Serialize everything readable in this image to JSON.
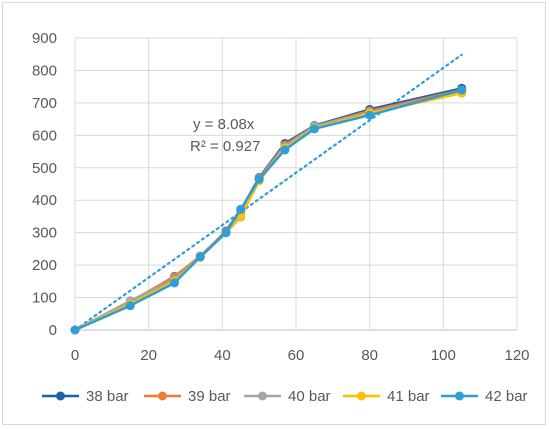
{
  "chart_data": {
    "type": "line",
    "title": "",
    "xlabel": "",
    "ylabel": "",
    "xlim": [
      0,
      120
    ],
    "ylim": [
      0,
      900
    ],
    "x_ticks": [
      "0",
      "20",
      "40",
      "60",
      "80",
      "100",
      "120"
    ],
    "y_ticks": [
      "0",
      "100",
      "200",
      "300",
      "400",
      "500",
      "600",
      "700",
      "800",
      "900"
    ],
    "grid": "horizontal and vertical",
    "legend_position": "bottom",
    "series": [
      {
        "name": "38 bar",
        "color": "#1f5fa8",
        "points": [
          [
            0,
            0
          ],
          [
            15,
            85
          ],
          [
            27,
            165
          ],
          [
            34,
            225
          ],
          [
            41,
            305
          ],
          [
            45,
            370
          ],
          [
            50,
            470
          ],
          [
            57,
            575
          ],
          [
            65,
            630
          ],
          [
            80,
            680
          ],
          [
            105,
            745
          ]
        ]
      },
      {
        "name": "39 bar",
        "color": "#ed7d31",
        "points": [
          [
            0,
            0
          ],
          [
            15,
            88
          ],
          [
            27,
            163
          ],
          [
            34,
            228
          ],
          [
            41,
            303
          ],
          [
            45,
            360
          ],
          [
            50,
            468
          ],
          [
            57,
            570
          ],
          [
            65,
            628
          ],
          [
            80,
            675
          ],
          [
            105,
            740
          ]
        ]
      },
      {
        "name": "40 bar",
        "color": "#a5a5a5",
        "points": [
          [
            0,
            0
          ],
          [
            15,
            90
          ],
          [
            27,
            155
          ],
          [
            34,
            226
          ],
          [
            41,
            300
          ],
          [
            45,
            348
          ],
          [
            50,
            465
          ],
          [
            57,
            565
          ],
          [
            65,
            628
          ],
          [
            80,
            670
          ],
          [
            105,
            735
          ]
        ]
      },
      {
        "name": "41 bar",
        "color": "#ffc000",
        "points": [
          [
            0,
            0
          ],
          [
            15,
            80
          ],
          [
            27,
            150
          ],
          [
            34,
            224
          ],
          [
            41,
            300
          ],
          [
            45,
            350
          ],
          [
            50,
            460
          ],
          [
            57,
            560
          ],
          [
            65,
            622
          ],
          [
            80,
            668
          ],
          [
            105,
            730
          ]
        ]
      },
      {
        "name": "42 bar",
        "color": "#2e9fd6",
        "points": [
          [
            0,
            0
          ],
          [
            15,
            75
          ],
          [
            27,
            145
          ],
          [
            34,
            225
          ],
          [
            41,
            300
          ],
          [
            45,
            372
          ],
          [
            50,
            465
          ],
          [
            57,
            555
          ],
          [
            65,
            620
          ],
          [
            80,
            662
          ],
          [
            105,
            740
          ]
        ]
      }
    ],
    "trendline": {
      "slope": 8.08,
      "x_range": [
        0,
        105
      ],
      "color": "#2e9fd6",
      "style": "dotted"
    },
    "annotation": {
      "equation": "y = 8.08x",
      "r_squared": "R² = 0.927"
    }
  }
}
